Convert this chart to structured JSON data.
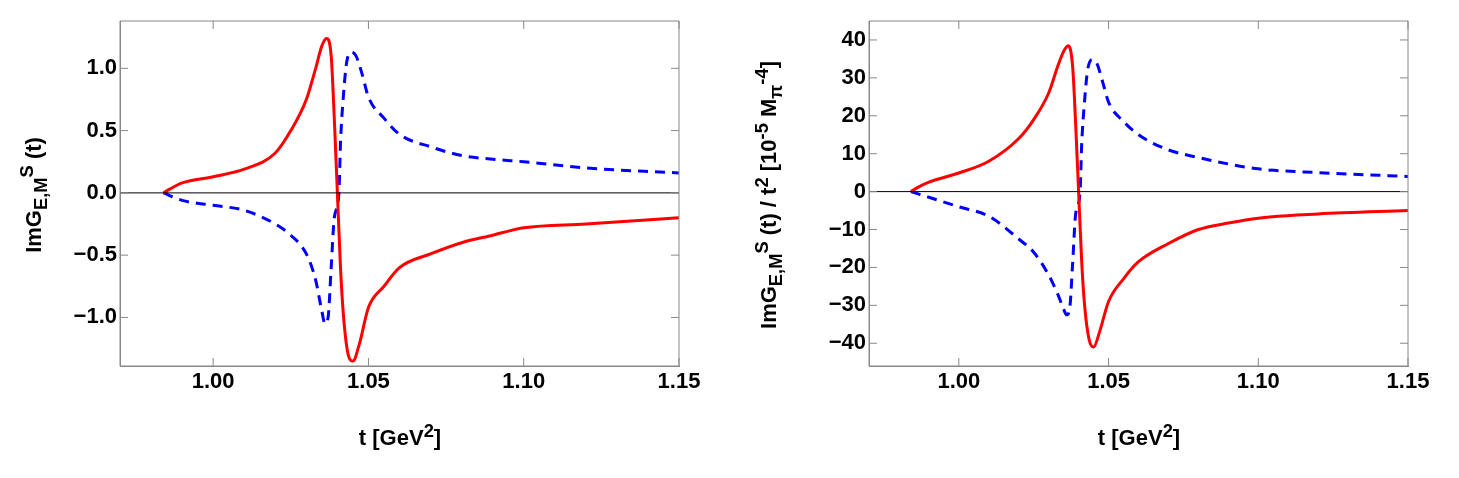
{
  "chart_data": [
    {
      "type": "line",
      "xlabel": "t [GeV$^{2}$]",
      "ylabel": "ImG$_{E,M}$$^{S}$ (t)",
      "xlim": [
        0.97,
        1.15
      ],
      "ylim": [
        -1.39,
        1.38
      ],
      "xticks": [
        {
          "value": 1.0,
          "label": "1.00"
        },
        {
          "value": 1.05,
          "label": "1.05"
        },
        {
          "value": 1.1,
          "label": "1.10"
        },
        {
          "value": 1.15,
          "label": "1.15"
        }
      ],
      "yticks": [
        {
          "value": -1,
          "label": "−1.0"
        },
        {
          "value": -0.5,
          "label": "−0.5"
        },
        {
          "value": 0,
          "label": "0.0"
        },
        {
          "value": 0.5,
          "label": "0.5"
        },
        {
          "value": 1,
          "label": "1.0"
        }
      ],
      "grid": false,
      "legend": false,
      "marker": "none",
      "ref_lines": [
        {
          "axis": "y",
          "value": 0,
          "color": "#000000"
        }
      ],
      "series": [
        {
          "color": "#ff0000",
          "line_style": "solid",
          "x": [
            0.984,
            0.986,
            0.99,
            1.0,
            1.01,
            1.02,
            1.025,
            1.03,
            1.033,
            1.035,
            1.0365,
            1.038,
            1.039,
            1.04,
            1.041,
            1.042,
            1.0435,
            1.045,
            1.047,
            1.05,
            1.055,
            1.06,
            1.07,
            1.08,
            1.09,
            1.1,
            1.12,
            1.15
          ],
          "values": [
            0,
            0.03,
            0.08,
            0.13,
            0.19,
            0.32,
            0.5,
            0.75,
            1.0,
            1.18,
            1.24,
            1.1,
            0.6,
            0,
            -0.6,
            -1.0,
            -1.3,
            -1.35,
            -1.22,
            -0.92,
            -0.75,
            -0.6,
            -0.49,
            -0.4,
            -0.34,
            -0.28,
            -0.25,
            -0.2
          ]
        },
        {
          "color": "#0000ff",
          "line_style": "dashed",
          "x": [
            0.984,
            0.99,
            1.0,
            1.01,
            1.02,
            1.025,
            1.03,
            1.033,
            1.035,
            1.036,
            1.037,
            1.038,
            1.039,
            1.0405,
            1.041,
            1.042,
            1.043,
            1.0445,
            1.046,
            1.048,
            1.05,
            1.055,
            1.06,
            1.07,
            1.08,
            1.09,
            1.1,
            1.12,
            1.15
          ],
          "values": [
            0,
            -0.06,
            -0.1,
            -0.14,
            -0.25,
            -0.34,
            -0.49,
            -0.7,
            -0.95,
            -1.05,
            -1.0,
            -0.6,
            -0.2,
            0,
            0.4,
            0.8,
            1.05,
            1.13,
            1.1,
            0.95,
            0.77,
            0.6,
            0.47,
            0.37,
            0.3,
            0.27,
            0.25,
            0.2,
            0.16
          ]
        }
      ]
    },
    {
      "type": "line",
      "xlabel": "t [GeV$^{2}$]",
      "ylabel": "ImG$_{E,M}$$^{S}$ (t) / t$^{2}$ [10$^{-5}$ M$_{π}$$^{-4}$]",
      "xlim": [
        0.97,
        1.15
      ],
      "ylim": [
        -46,
        45
      ],
      "xticks": [
        {
          "value": 1.0,
          "label": "1.00"
        },
        {
          "value": 1.05,
          "label": "1.05"
        },
        {
          "value": 1.1,
          "label": "1.10"
        },
        {
          "value": 1.15,
          "label": "1.15"
        }
      ],
      "yticks": [
        {
          "value": -40,
          "label": "−40"
        },
        {
          "value": -30,
          "label": "−30"
        },
        {
          "value": -20,
          "label": "−20"
        },
        {
          "value": -10,
          "label": "−10"
        },
        0,
        10,
        20,
        30,
        40
      ],
      "grid": false,
      "legend": false,
      "marker": "none",
      "ref_lines": [
        {
          "axis": "y",
          "value": 0,
          "color": "#000000"
        }
      ],
      "series": [
        {
          "color": "#ff0000",
          "line_style": "solid",
          "x": [
            0.984,
            0.986,
            0.99,
            1.0,
            1.01,
            1.02,
            1.025,
            1.03,
            1.033,
            1.035,
            1.0365,
            1.038,
            1.039,
            1.04,
            1.041,
            1.042,
            1.0435,
            1.045,
            1.047,
            1.05,
            1.055,
            1.06,
            1.07,
            1.08,
            1.09,
            1.1,
            1.12,
            1.15
          ],
          "values": [
            0,
            1,
            2.5,
            4.9,
            8,
            14,
            19,
            26,
            33,
            37,
            38.5,
            33,
            18,
            0,
            -18,
            -30,
            -39,
            -41,
            -37,
            -29,
            -23,
            -18.5,
            -13.7,
            -10,
            -8.3,
            -7,
            -5.9,
            -5
          ]
        },
        {
          "color": "#0000ff",
          "line_style": "dashed",
          "x": [
            0.984,
            0.99,
            1.0,
            1.01,
            1.02,
            1.025,
            1.03,
            1.033,
            1.035,
            1.036,
            1.037,
            1.038,
            1.039,
            1.0405,
            1.041,
            1.042,
            1.043,
            1.0445,
            1.046,
            1.048,
            1.05,
            1.055,
            1.06,
            1.07,
            1.08,
            1.09,
            1.1,
            1.12,
            1.15
          ],
          "values": [
            0,
            -1.5,
            -4,
            -6.5,
            -12.5,
            -16,
            -22,
            -27,
            -31,
            -32.5,
            -31,
            -19,
            -6,
            0,
            12,
            24,
            32,
            34.8,
            34,
            29,
            23.6,
            18.5,
            15,
            11,
            9,
            7.3,
            6,
            5,
            4
          ]
        }
      ]
    }
  ]
}
